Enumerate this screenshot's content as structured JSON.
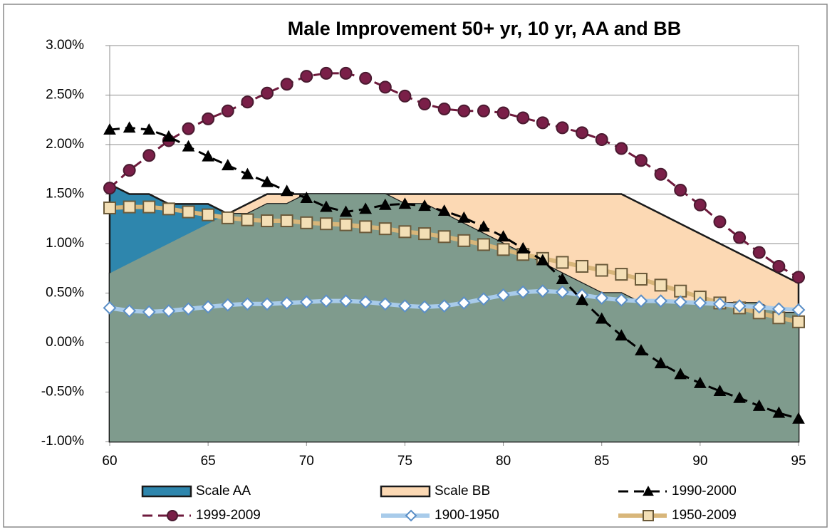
{
  "chart_data": {
    "type": "line",
    "title": "Male Improvement 50+ yr, 10 yr, AA and BB",
    "x": [
      60,
      61,
      62,
      63,
      64,
      65,
      66,
      67,
      68,
      69,
      70,
      71,
      72,
      73,
      74,
      75,
      76,
      77,
      78,
      79,
      80,
      81,
      82,
      83,
      84,
      85,
      86,
      87,
      88,
      89,
      90,
      91,
      92,
      93,
      94,
      95
    ],
    "xlim": [
      60,
      95
    ],
    "xticks": [
      60,
      65,
      70,
      75,
      80,
      85,
      90,
      95
    ],
    "ylim": [
      -1,
      3
    ],
    "yticks": [
      {
        "value": -1,
        "label": "-1.00%"
      },
      {
        "value": -0.5,
        "label": "-0.50%"
      },
      {
        "value": 0,
        "label": "0.00%"
      },
      {
        "value": 0.5,
        "label": "0.50%"
      },
      {
        "value": 1,
        "label": "1.00%"
      },
      {
        "value": 1.5,
        "label": "1.50%"
      },
      {
        "value": 2,
        "label": "2.00%"
      },
      {
        "value": 2.5,
        "label": "2.50%"
      },
      {
        "value": 3,
        "label": "3.00%"
      }
    ],
    "grid": true,
    "legend": "bottom",
    "overlap_color": "#7f9b8d",
    "series": [
      {
        "name": "Scale AA",
        "type": "area",
        "color": "#2e86ad",
        "values": [
          1.6,
          1.5,
          1.5,
          1.4,
          1.4,
          1.4,
          1.3,
          1.3,
          1.4,
          1.4,
          1.5,
          1.5,
          1.5,
          1.5,
          1.5,
          1.4,
          1.4,
          1.3,
          1.2,
          1.1,
          1.0,
          0.9,
          0.8,
          0.7,
          0.6,
          0.5,
          0.5,
          0.4,
          0.4,
          0.4,
          0.4,
          0.4,
          0.4,
          0.4,
          0.3,
          0.3
        ]
      },
      {
        "name": "Scale BB",
        "type": "area",
        "color": "#fcd9b4",
        "values": [
          0.7,
          0.8,
          0.9,
          1.0,
          1.1,
          1.2,
          1.3,
          1.4,
          1.5,
          1.5,
          1.5,
          1.5,
          1.5,
          1.5,
          1.5,
          1.5,
          1.5,
          1.5,
          1.5,
          1.5,
          1.5,
          1.5,
          1.5,
          1.5,
          1.5,
          1.5,
          1.5,
          1.4,
          1.3,
          1.2,
          1.1,
          1.0,
          0.9,
          0.8,
          0.7,
          0.6
        ]
      },
      {
        "name": "1990-2000",
        "type": "line",
        "color": "#000000",
        "marker": "triangle",
        "dash": true,
        "width": 3,
        "marker_fill": "#000000",
        "values": [
          2.15,
          2.17,
          2.15,
          2.08,
          1.98,
          1.88,
          1.79,
          1.7,
          1.62,
          1.53,
          1.46,
          1.37,
          1.32,
          1.35,
          1.39,
          1.4,
          1.38,
          1.33,
          1.26,
          1.17,
          1.07,
          0.95,
          0.83,
          0.64,
          0.43,
          0.24,
          0.07,
          -0.08,
          -0.21,
          -0.32,
          -0.41,
          -0.49,
          -0.56,
          -0.64,
          -0.71,
          -0.77
        ]
      },
      {
        "name": "1999-2009",
        "type": "line",
        "color": "#6e1a3c",
        "marker": "circle",
        "dash": true,
        "width": 3,
        "marker_fill": "#7a1f48",
        "values": [
          1.56,
          1.74,
          1.89,
          2.04,
          2.16,
          2.26,
          2.34,
          2.43,
          2.52,
          2.61,
          2.69,
          2.72,
          2.72,
          2.67,
          2.58,
          2.49,
          2.41,
          2.36,
          2.34,
          2.34,
          2.32,
          2.27,
          2.22,
          2.17,
          2.12,
          2.05,
          1.96,
          1.84,
          1.7,
          1.54,
          1.39,
          1.22,
          1.06,
          0.91,
          0.77,
          0.66
        ]
      },
      {
        "name": "1900-1950",
        "type": "line",
        "color": "#a8cbea",
        "marker": "diamond",
        "dash": false,
        "width": 6,
        "marker_fill": "#ffffff",
        "values": [
          0.35,
          0.32,
          0.31,
          0.32,
          0.34,
          0.36,
          0.38,
          0.39,
          0.39,
          0.4,
          0.41,
          0.42,
          0.42,
          0.41,
          0.39,
          0.37,
          0.36,
          0.37,
          0.4,
          0.44,
          0.48,
          0.51,
          0.52,
          0.51,
          0.48,
          0.45,
          0.43,
          0.42,
          0.42,
          0.41,
          0.4,
          0.39,
          0.37,
          0.36,
          0.34,
          0.33
        ]
      },
      {
        "name": "1950-2009",
        "type": "line",
        "color": "#d8b67a",
        "marker": "square",
        "dash": false,
        "width": 6,
        "marker_fill": "#f3dfb6",
        "values": [
          1.36,
          1.37,
          1.37,
          1.35,
          1.32,
          1.29,
          1.26,
          1.24,
          1.23,
          1.23,
          1.21,
          1.2,
          1.19,
          1.17,
          1.15,
          1.12,
          1.1,
          1.07,
          1.03,
          0.99,
          0.94,
          0.89,
          0.85,
          0.81,
          0.77,
          0.73,
          0.69,
          0.64,
          0.58,
          0.52,
          0.46,
          0.4,
          0.35,
          0.3,
          0.25,
          0.21
        ]
      }
    ]
  }
}
